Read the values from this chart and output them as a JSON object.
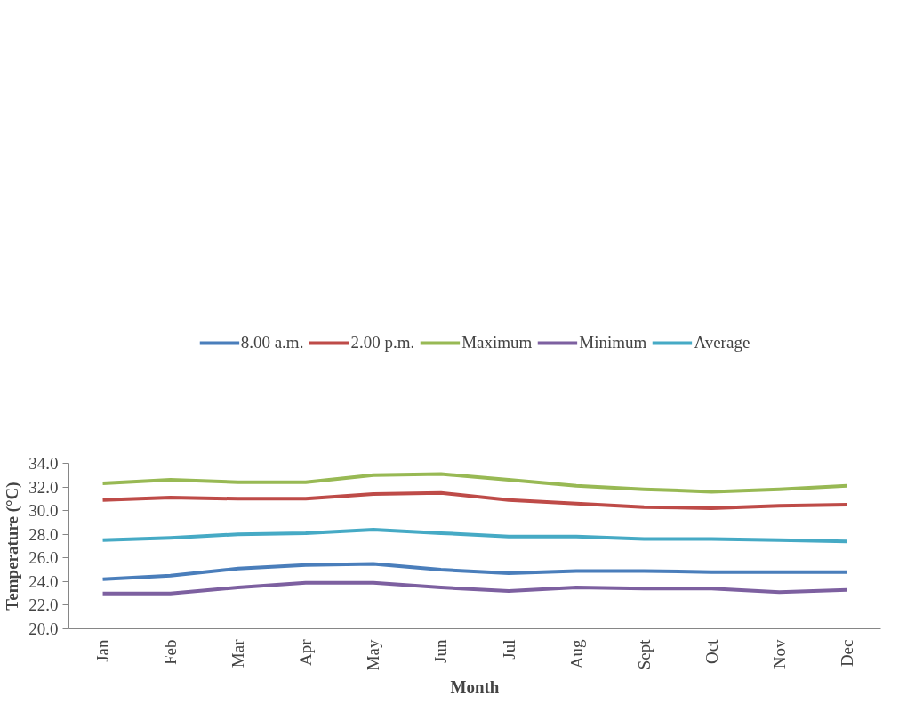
{
  "chart_data": {
    "type": "line",
    "xlabel": "Month",
    "ylabel": "Temperature (°C)",
    "categories": [
      "Jan",
      "Feb",
      "Mar",
      "Apr",
      "May",
      "Jun",
      "Jul",
      "Aug",
      "Sept",
      "Oct",
      "Nov",
      "Dec"
    ],
    "series": [
      {
        "name": "8.00 a.m.",
        "color": "#4a7ebb",
        "values": [
          24.2,
          24.5,
          25.1,
          25.4,
          25.5,
          25.0,
          24.7,
          24.9,
          24.9,
          24.8,
          24.8,
          24.8
        ]
      },
      {
        "name": "2.00 p.m.",
        "color": "#be4b48",
        "values": [
          30.9,
          31.1,
          31.0,
          31.0,
          31.4,
          31.5,
          30.9,
          30.6,
          30.3,
          30.2,
          30.4,
          30.5
        ]
      },
      {
        "name": "Maximum",
        "color": "#98b954",
        "values": [
          32.3,
          32.6,
          32.4,
          32.4,
          33.0,
          33.1,
          32.6,
          32.1,
          31.8,
          31.6,
          31.8,
          32.1
        ]
      },
      {
        "name": "Minimum",
        "color": "#7d60a0",
        "values": [
          23.0,
          23.0,
          23.5,
          23.9,
          23.9,
          23.5,
          23.2,
          23.5,
          23.4,
          23.4,
          23.1,
          23.3
        ]
      },
      {
        "name": "Average",
        "color": "#46aac5",
        "values": [
          27.5,
          27.7,
          28.0,
          28.1,
          28.4,
          28.1,
          27.8,
          27.8,
          27.6,
          27.6,
          27.5,
          27.4
        ]
      }
    ],
    "ylim": [
      20,
      34
    ],
    "yticks": [
      {
        "value": 20,
        "label": "20.0"
      },
      {
        "value": 22,
        "label": "22.0"
      },
      {
        "value": 24,
        "label": "24.0"
      },
      {
        "value": 26,
        "label": "26.0"
      },
      {
        "value": 28,
        "label": "28.0"
      },
      {
        "value": 30,
        "label": "30.0"
      },
      {
        "value": 32,
        "label": "32.0"
      },
      {
        "value": 34,
        "label": "34.0"
      }
    ],
    "grid": false,
    "legend": "top",
    "marker": "none",
    "line_style": "solid"
  }
}
